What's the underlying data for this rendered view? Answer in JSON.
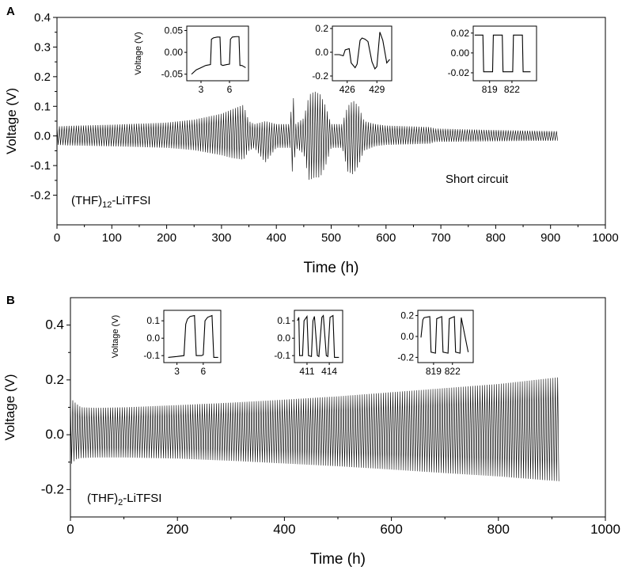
{
  "panels": [
    {
      "label": "A",
      "chart_data": {
        "type": "line",
        "title": "",
        "xlabel": "Time (h)",
        "ylabel": "Voltage (V)",
        "xlim": [
          0,
          1000
        ],
        "ylim": [
          -0.3,
          0.4
        ],
        "xticks": [
          0,
          100,
          200,
          300,
          400,
          500,
          600,
          700,
          800,
          900,
          1000
        ],
        "yticks": [
          -0.2,
          -0.1,
          0.0,
          0.1,
          0.2,
          0.3,
          0.4
        ],
        "ytick_labels": [
          "-0.2",
          "-0.1",
          "0.0",
          "0.1",
          "0.2",
          "0.3",
          "0.4"
        ],
        "grid": false,
        "series": [
          {
            "envelope": {
              "x": [
                0,
                20,
                100,
                200,
                250,
                300,
                320,
                340,
                350,
                360,
                380,
                400,
                425,
                430,
                435,
                450,
                460,
                470,
                480,
                490,
                500,
                520,
                530,
                540,
                550,
                560,
                580,
                600,
                650,
                680,
                690,
                750,
                800,
                850,
                915
              ],
              "upper": [
                0.032,
                0.034,
                0.038,
                0.045,
                0.055,
                0.075,
                0.09,
                0.105,
                0.05,
                0.04,
                0.05,
                0.04,
                0.04,
                0.155,
                0.04,
                0.06,
                0.14,
                0.15,
                0.14,
                0.1,
                0.04,
                0.04,
                0.1,
                0.12,
                0.1,
                0.05,
                0.04,
                0.035,
                0.032,
                0.03,
                0.025,
                0.022,
                0.02,
                0.018,
                0.016
              ],
              "lower": [
                -0.03,
                -0.032,
                -0.035,
                -0.04,
                -0.048,
                -0.065,
                -0.075,
                -0.08,
                -0.05,
                -0.04,
                -0.09,
                -0.04,
                -0.04,
                -0.14,
                -0.04,
                -0.06,
                -0.15,
                -0.14,
                -0.14,
                -0.1,
                -0.04,
                -0.04,
                -0.12,
                -0.13,
                -0.1,
                -0.05,
                -0.035,
                -0.03,
                -0.028,
                -0.026,
                -0.02,
                -0.019,
                -0.018,
                -0.017,
                -0.016
              ]
            }
          }
        ],
        "annotations": [
          {
            "text": "Short circuit",
            "x": 630,
            "y": -0.13
          }
        ],
        "insets": [
          {
            "xticks": [
              3,
              6
            ],
            "yticks": [
              -0.05,
              0.0,
              0.05
            ],
            "ytick_labels": [
              "-0.05",
              "0.00",
              "0.05"
            ],
            "ylabel": "Voltage (V)",
            "xlim": [
              1.5,
              8
            ],
            "ylim": [
              -0.065,
              0.06
            ],
            "x": [
              2.0,
              2.5,
              3.0,
              3.5,
              4.0,
              4.1,
              4.3,
              4.7,
              5.0,
              5.1,
              5.3,
              5.7,
              6.0,
              6.1,
              6.3,
              6.7,
              7.0,
              7.1,
              7.3,
              7.7
            ],
            "y": [
              -0.05,
              -0.04,
              -0.035,
              -0.03,
              -0.028,
              0.03,
              0.033,
              0.035,
              0.035,
              -0.028,
              -0.03,
              -0.028,
              -0.027,
              0.03,
              0.035,
              0.036,
              0.036,
              -0.03,
              -0.03,
              -0.035
            ]
          },
          {
            "xticks": [
              426,
              429
            ],
            "yticks": [
              -0.2,
              0.0,
              0.2
            ],
            "ytick_labels": [
              "-0.2",
              "0.0",
              "0.2"
            ],
            "ylabel": "",
            "xlim": [
              424.5,
              430.5
            ],
            "ylim": [
              -0.24,
              0.22
            ],
            "x": [
              424.7,
              425.2,
              425.6,
              425.8,
              426.2,
              426.4,
              426.8,
              427.0,
              427.3,
              427.5,
              427.8,
              428.1,
              428.5,
              428.8,
              429.0,
              429.3,
              429.6,
              430.0,
              430.3
            ],
            "y": [
              -0.02,
              -0.02,
              -0.03,
              0.02,
              0.03,
              -0.09,
              -0.13,
              -0.1,
              0.1,
              0.12,
              0.11,
              0.09,
              -0.08,
              -0.14,
              -0.12,
              0.17,
              0.1,
              -0.09,
              -0.06
            ]
          },
          {
            "xticks": [
              819,
              822
            ],
            "yticks": [
              -0.02,
              0.0,
              0.02
            ],
            "ytick_labels": [
              "-0.02",
              "0.00",
              "0.02"
            ],
            "ylabel": "",
            "xlim": [
              816.8,
              825.3
            ],
            "ylim": [
              -0.028,
              0.027
            ],
            "x": [
              817.0,
              818.1,
              818.2,
              819.4,
              819.5,
              820.7,
              820.8,
              822.1,
              822.2,
              823.4,
              823.5,
              824.5
            ],
            "y": [
              0.018,
              0.018,
              -0.019,
              -0.019,
              0.018,
              0.018,
              -0.019,
              -0.019,
              0.018,
              0.018,
              -0.019,
              -0.019
            ]
          }
        ],
        "inset_xlabel": "",
        "sample_label_main": "(THF)",
        "sample_label_sub": "12",
        "sample_label_tail": "-LiTFSI"
      }
    },
    {
      "label": "B",
      "chart_data": {
        "type": "line",
        "title": "",
        "xlabel": "Time (h)",
        "ylabel": "Voltage (V)",
        "xlim": [
          0,
          1000
        ],
        "ylim": [
          -0.3,
          0.5
        ],
        "xticks": [
          0,
          200,
          400,
          600,
          800,
          1000
        ],
        "yticks": [
          -0.2,
          0.0,
          0.2,
          0.4
        ],
        "ytick_labels": [
          "-0.2",
          "0.0",
          "0.2",
          "0.4"
        ],
        "grid": false,
        "series": [
          {
            "envelope": {
              "x": [
                0,
                5,
                10,
                20,
                50,
                100,
                200,
                300,
                400,
                500,
                600,
                700,
                800,
                915
              ],
              "upper": [
                0.13,
                0.125,
                0.115,
                0.1,
                0.098,
                0.1,
                0.108,
                0.117,
                0.128,
                0.14,
                0.155,
                0.17,
                0.185,
                0.21
              ],
              "lower": [
                -0.11,
                -0.1,
                -0.09,
                -0.085,
                -0.083,
                -0.083,
                -0.087,
                -0.095,
                -0.105,
                -0.115,
                -0.127,
                -0.14,
                -0.152,
                -0.17
              ]
            }
          }
        ],
        "annotations": [],
        "insets": [
          {
            "xticks": [
              3,
              6
            ],
            "yticks": [
              -0.1,
              0.0,
              0.1
            ],
            "ytick_labels": [
              "-0.1",
              "0.0",
              "0.1"
            ],
            "ylabel": "Voltage (V)",
            "xlim": [
              1.5,
              8
            ],
            "ylim": [
              -0.14,
              0.16
            ],
            "x": [
              2.0,
              3.0,
              3.8,
              4.0,
              4.2,
              4.5,
              5.0,
              5.2,
              5.8,
              6.0,
              6.2,
              6.5,
              7.0,
              7.2,
              7.7
            ],
            "y": [
              -0.11,
              -0.105,
              -0.1,
              0.08,
              0.11,
              0.125,
              0.13,
              -0.1,
              -0.1,
              -0.095,
              0.1,
              0.12,
              0.13,
              -0.11,
              -0.11
            ]
          },
          {
            "xticks": [
              411,
              414
            ],
            "yticks": [
              -0.1,
              0.0,
              0.1
            ],
            "ytick_labels": [
              "-0.1",
              "0.0",
              "0.1"
            ],
            "ylabel": "",
            "xlim": [
              409.3,
              415.8
            ],
            "ylim": [
              -0.14,
              0.16
            ],
            "x": [
              409.7,
              409.9,
              410.0,
              410.4,
              410.6,
              411.0,
              411.2,
              411.6,
              411.8,
              412.0,
              412.4,
              412.6,
              413.0,
              413.2,
              413.6,
              413.8,
              414.1,
              414.5,
              414.7,
              415.3
            ],
            "y": [
              0.1,
              0.12,
              -0.1,
              -0.1,
              0.1,
              0.125,
              -0.1,
              -0.105,
              0.1,
              0.125,
              -0.1,
              -0.105,
              0.12,
              0.13,
              -0.1,
              -0.105,
              0.12,
              0.13,
              -0.11,
              -0.11
            ]
          },
          {
            "xticks": [
              819,
              822
            ],
            "yticks": [
              -0.2,
              0.0,
              0.2
            ],
            "ytick_labels": [
              "-0.2",
              "0.0",
              "0.2"
            ],
            "ylabel": "",
            "xlim": [
              816.5,
              825.3
            ],
            "ylim": [
              -0.25,
              0.25
            ],
            "x": [
              817.0,
              817.3,
              817.5,
              818.4,
              818.6,
              819.3,
              819.5,
              820.3,
              820.5,
              821.3,
              821.5,
              822.3,
              822.5,
              823.2,
              823.4,
              824.5
            ],
            "y": [
              -0.01,
              0.16,
              0.18,
              0.19,
              -0.15,
              -0.16,
              0.17,
              0.19,
              -0.15,
              -0.16,
              0.17,
              0.19,
              -0.15,
              -0.16,
              0.18,
              -0.15
            ]
          }
        ],
        "inset_xlabel": "",
        "sample_label_main": "(THF)",
        "sample_label_sub": "2",
        "sample_label_tail": "-LiTFSI"
      }
    }
  ]
}
